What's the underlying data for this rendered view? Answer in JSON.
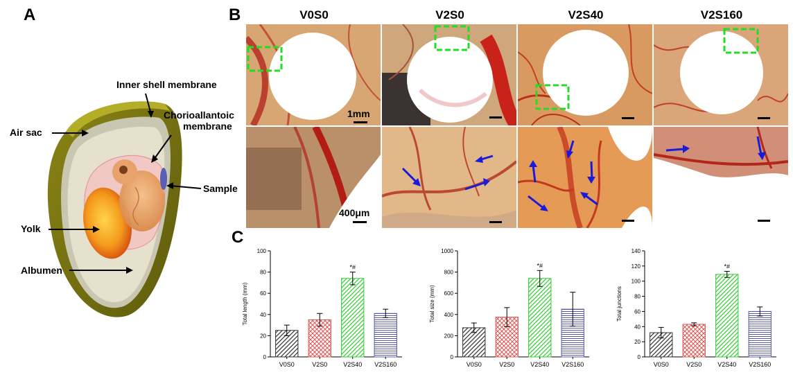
{
  "figure": {
    "panel_labels": {
      "a": "A",
      "b": "B",
      "c": "C"
    },
    "egg_labels": {
      "inner_shell": "Inner shell membrane",
      "cam_1": "Chorioallantoic",
      "cam_2": "membrane",
      "air_sac": "Air sac",
      "sample": "Sample",
      "yolk": "Yolk",
      "albumen": "Albumen"
    },
    "columns": [
      "V0S0",
      "V2S0",
      "V2S40",
      "V2S160"
    ],
    "scale_top": "1mm",
    "scale_bottom": "400μm"
  },
  "colors": {
    "black_hatch": "#333333",
    "red_grid": "#d9534f",
    "green_hatch": "#33cc33",
    "blue_lines": "#5555aa",
    "arrow_blue": "#1a1adb",
    "roi_green": "#22dd22"
  },
  "chart_data": [
    {
      "type": "bar",
      "categories": [
        "V0S0",
        "V2S0",
        "V2S40",
        "V2S160"
      ],
      "values": [
        25,
        35,
        74,
        41
      ],
      "errors": [
        5,
        6,
        6,
        4
      ],
      "annotations": [
        "",
        "",
        "*#",
        ""
      ],
      "ylabel": "Total length (mm)",
      "ylim": [
        0,
        100
      ],
      "yticks": [
        0,
        20,
        40,
        60,
        80,
        100
      ]
    },
    {
      "type": "bar",
      "categories": [
        "V0S0",
        "V2S0",
        "V2S40",
        "V2S160"
      ],
      "values": [
        275,
        375,
        740,
        450
      ],
      "errors": [
        45,
        90,
        75,
        160
      ],
      "annotations": [
        "",
        "",
        "*#",
        ""
      ],
      "ylabel": "Total size (mm)",
      "ylim": [
        0,
        1000
      ],
      "yticks": [
        0,
        200,
        400,
        600,
        800,
        1000
      ]
    },
    {
      "type": "bar",
      "categories": [
        "V0S0",
        "V2S0",
        "V2S40",
        "V2S160"
      ],
      "values": [
        32,
        43,
        109,
        60
      ],
      "errors": [
        7,
        2,
        4,
        6
      ],
      "annotations": [
        "",
        "",
        "*#",
        ""
      ],
      "ylabel": "Total junctions",
      "ylim": [
        0,
        140
      ],
      "yticks": [
        0,
        20,
        40,
        60,
        80,
        100,
        120,
        140
      ]
    }
  ]
}
